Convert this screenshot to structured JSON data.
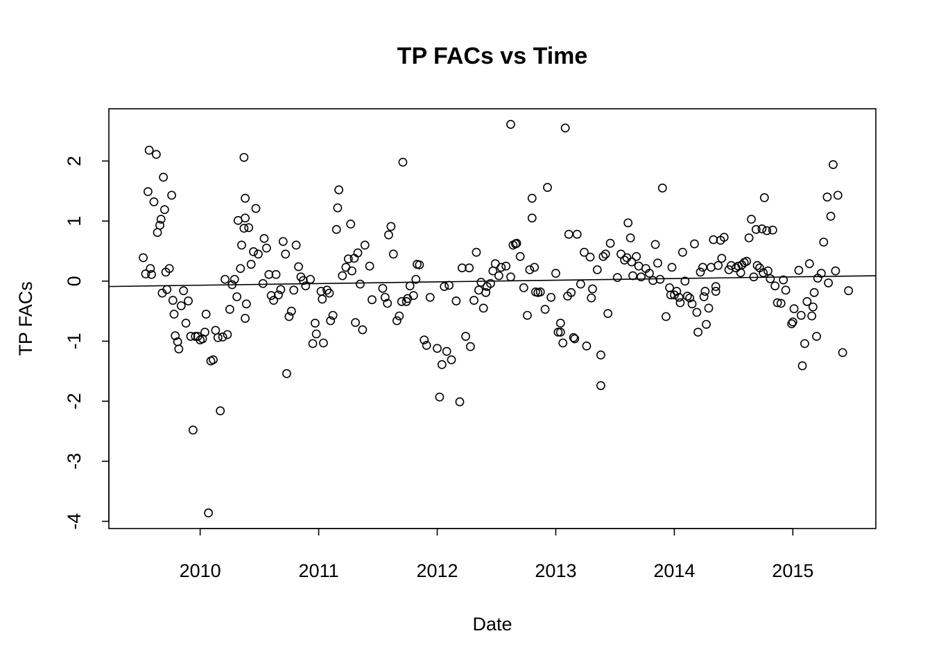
{
  "chart_data": {
    "type": "scatter",
    "title": "TP FACs vs Time",
    "xlabel": "Date",
    "ylabel": "TP FACs",
    "x_unit": "year",
    "xlim": [
      2009.23,
      2015.7
    ],
    "ylim": [
      -4.12,
      2.87
    ],
    "x_ticks": [
      2010,
      2011,
      2012,
      2013,
      2014,
      2015
    ],
    "y_ticks": [
      -4,
      -3,
      -2,
      -1,
      0,
      1,
      2
    ],
    "grid": false,
    "legend": "none",
    "trend_line": {
      "x": [
        2009.23,
        2015.7
      ],
      "y": [
        -0.09,
        0.09
      ]
    },
    "points": [
      [
        2009.52,
        0.39
      ],
      [
        2009.54,
        0.12
      ],
      [
        2009.56,
        1.49
      ],
      [
        2009.57,
        2.18
      ],
      [
        2009.58,
        0.21
      ],
      [
        2009.59,
        0.11
      ],
      [
        2009.61,
        1.32
      ],
      [
        2009.63,
        2.11
      ],
      [
        2009.64,
        0.81
      ],
      [
        2009.66,
        0.93
      ],
      [
        2009.67,
        1.03
      ],
      [
        2009.68,
        -0.2
      ],
      [
        2009.69,
        1.73
      ],
      [
        2009.7,
        1.19
      ],
      [
        2009.71,
        0.15
      ],
      [
        2009.72,
        -0.14
      ],
      [
        2009.74,
        0.21
      ],
      [
        2009.76,
        1.43
      ],
      [
        2009.77,
        -0.32
      ],
      [
        2009.78,
        -0.55
      ],
      [
        2009.79,
        -0.91
      ],
      [
        2009.81,
        -1.01
      ],
      [
        2009.82,
        -1.13
      ],
      [
        2009.84,
        -0.41
      ],
      [
        2009.86,
        -0.16
      ],
      [
        2009.88,
        -0.7
      ],
      [
        2009.9,
        -0.33
      ],
      [
        2009.92,
        -0.92
      ],
      [
        2009.94,
        -2.48
      ],
      [
        2009.96,
        -0.92
      ],
      [
        2009.98,
        -0.92
      ],
      [
        2010.0,
        -0.98
      ],
      [
        2010.02,
        -0.96
      ],
      [
        2010.04,
        -0.85
      ],
      [
        2010.05,
        -0.55
      ],
      [
        2010.07,
        -3.86
      ],
      [
        2010.09,
        -1.33
      ],
      [
        2010.11,
        -1.31
      ],
      [
        2010.13,
        -0.82
      ],
      [
        2010.15,
        -0.94
      ],
      [
        2010.17,
        -2.16
      ],
      [
        2010.19,
        -0.93
      ],
      [
        2010.21,
        0.03
      ],
      [
        2010.23,
        -0.89
      ],
      [
        2010.25,
        -0.47
      ],
      [
        2010.27,
        -0.06
      ],
      [
        2010.29,
        0.03
      ],
      [
        2010.31,
        -0.26
      ],
      [
        2010.32,
        1.01
      ],
      [
        2010.34,
        0.21
      ],
      [
        2010.35,
        0.6
      ],
      [
        2010.37,
        2.06
      ],
      [
        2010.37,
        0.88
      ],
      [
        2010.38,
        1.38
      ],
      [
        2010.38,
        1.05
      ],
      [
        2010.39,
        -0.38
      ],
      [
        2010.38,
        -0.62
      ],
      [
        2010.41,
        0.89
      ],
      [
        2010.43,
        0.28
      ],
      [
        2010.45,
        0.49
      ],
      [
        2010.47,
        1.21
      ],
      [
        2010.49,
        0.45
      ],
      [
        2010.53,
        -0.04
      ],
      [
        2010.54,
        0.71
      ],
      [
        2010.56,
        0.55
      ],
      [
        2010.58,
        0.11
      ],
      [
        2010.6,
        -0.24
      ],
      [
        2010.62,
        -0.32
      ],
      [
        2010.64,
        0.11
      ],
      [
        2010.66,
        -0.23
      ],
      [
        2010.68,
        -0.14
      ],
      [
        2010.7,
        0.66
      ],
      [
        2010.72,
        0.45
      ],
      [
        2010.73,
        -1.54
      ],
      [
        2010.75,
        -0.59
      ],
      [
        2010.77,
        -0.5
      ],
      [
        2010.79,
        -0.15
      ],
      [
        2010.81,
        0.6
      ],
      [
        2010.83,
        0.24
      ],
      [
        2010.85,
        0.07
      ],
      [
        2010.87,
        0.01
      ],
      [
        2010.89,
        -0.08
      ],
      [
        2010.93,
        0.03
      ],
      [
        2010.95,
        -1.04
      ],
      [
        2010.97,
        -0.7
      ],
      [
        2010.98,
        -0.88
      ],
      [
        2011.02,
        -0.17
      ],
      [
        2011.03,
        -0.3
      ],
      [
        2011.04,
        -1.03
      ],
      [
        2011.07,
        -0.15
      ],
      [
        2011.09,
        -0.2
      ],
      [
        2011.1,
        -0.66
      ],
      [
        2011.12,
        -0.57
      ],
      [
        2011.15,
        0.86
      ],
      [
        2011.16,
        1.22
      ],
      [
        2011.17,
        1.52
      ],
      [
        2011.2,
        0.09
      ],
      [
        2011.23,
        0.23
      ],
      [
        2011.25,
        0.37
      ],
      [
        2011.27,
        0.95
      ],
      [
        2011.28,
        0.17
      ],
      [
        2011.3,
        0.38
      ],
      [
        2011.31,
        -0.69
      ],
      [
        2011.33,
        0.47
      ],
      [
        2011.35,
        -0.05
      ],
      [
        2011.37,
        -0.81
      ],
      [
        2011.39,
        0.6
      ],
      [
        2011.43,
        0.25
      ],
      [
        2011.45,
        -0.31
      ],
      [
        2011.54,
        -0.12
      ],
      [
        2011.56,
        -0.27
      ],
      [
        2011.58,
        -0.37
      ],
      [
        2011.59,
        0.77
      ],
      [
        2011.61,
        0.91
      ],
      [
        2011.63,
        0.45
      ],
      [
        2011.66,
        -0.66
      ],
      [
        2011.68,
        -0.58
      ],
      [
        2011.7,
        -0.34
      ],
      [
        2011.71,
        1.98
      ],
      [
        2011.74,
        -0.34
      ],
      [
        2011.75,
        -0.29
      ],
      [
        2011.77,
        -0.08
      ],
      [
        2011.8,
        -0.24
      ],
      [
        2011.82,
        0.03
      ],
      [
        2011.83,
        0.28
      ],
      [
        2011.85,
        0.27
      ],
      [
        2011.89,
        -0.98
      ],
      [
        2011.91,
        -1.07
      ],
      [
        2011.94,
        -0.27
      ],
      [
        2012.0,
        -1.12
      ],
      [
        2012.02,
        -1.93
      ],
      [
        2012.04,
        -1.39
      ],
      [
        2012.06,
        -0.09
      ],
      [
        2012.08,
        -1.17
      ],
      [
        2012.1,
        -0.07
      ],
      [
        2012.12,
        -1.31
      ],
      [
        2012.16,
        -0.33
      ],
      [
        2012.19,
        -2.01
      ],
      [
        2012.21,
        0.22
      ],
      [
        2012.24,
        -0.92
      ],
      [
        2012.27,
        0.22
      ],
      [
        2012.28,
        -1.09
      ],
      [
        2012.31,
        -0.32
      ],
      [
        2012.33,
        0.48
      ],
      [
        2012.35,
        -0.15
      ],
      [
        2012.37,
        -0.02
      ],
      [
        2012.39,
        -0.45
      ],
      [
        2012.41,
        -0.19
      ],
      [
        2012.42,
        -0.09
      ],
      [
        2012.45,
        -0.04
      ],
      [
        2012.47,
        0.17
      ],
      [
        2012.49,
        0.29
      ],
      [
        2012.52,
        0.09
      ],
      [
        2012.54,
        0.23
      ],
      [
        2012.58,
        0.25
      ],
      [
        2012.62,
        2.61
      ],
      [
        2012.62,
        0.07
      ],
      [
        2012.64,
        0.6
      ],
      [
        2012.66,
        0.62
      ],
      [
        2012.67,
        0.63
      ],
      [
        2012.7,
        0.41
      ],
      [
        2012.73,
        -0.11
      ],
      [
        2012.76,
        -0.57
      ],
      [
        2012.78,
        0.19
      ],
      [
        2012.8,
        1.05
      ],
      [
        2012.8,
        1.38
      ],
      [
        2012.82,
        0.23
      ],
      [
        2012.83,
        -0.18
      ],
      [
        2012.85,
        -0.19
      ],
      [
        2012.87,
        -0.18
      ],
      [
        2012.91,
        -0.47
      ],
      [
        2012.93,
        1.56
      ],
      [
        2012.96,
        -0.27
      ],
      [
        2013.0,
        0.13
      ],
      [
        2013.02,
        -0.85
      ],
      [
        2013.04,
        -0.7
      ],
      [
        2013.04,
        -0.85
      ],
      [
        2013.06,
        -1.03
      ],
      [
        2013.08,
        2.55
      ],
      [
        2013.1,
        -0.25
      ],
      [
        2013.11,
        0.78
      ],
      [
        2013.13,
        -0.19
      ],
      [
        2013.15,
        -0.94
      ],
      [
        2013.16,
        -0.96
      ],
      [
        2013.18,
        0.78
      ],
      [
        2013.21,
        -0.05
      ],
      [
        2013.24,
        0.48
      ],
      [
        2013.26,
        -1.08
      ],
      [
        2013.29,
        0.4
      ],
      [
        2013.3,
        -0.28
      ],
      [
        2013.31,
        -0.13
      ],
      [
        2013.35,
        0.19
      ],
      [
        2013.38,
        -1.23
      ],
      [
        2013.38,
        -1.74
      ],
      [
        2013.4,
        0.41
      ],
      [
        2013.42,
        0.45
      ],
      [
        2013.44,
        -0.54
      ],
      [
        2013.46,
        0.63
      ],
      [
        2013.52,
        0.06
      ],
      [
        2013.55,
        0.45
      ],
      [
        2013.58,
        0.35
      ],
      [
        2013.6,
        0.39
      ],
      [
        2013.61,
        0.97
      ],
      [
        2013.63,
        0.72
      ],
      [
        2013.64,
        0.32
      ],
      [
        2013.65,
        0.09
      ],
      [
        2013.68,
        0.41
      ],
      [
        2013.7,
        0.25
      ],
      [
        2013.72,
        0.07
      ],
      [
        2013.76,
        0.21
      ],
      [
        2013.79,
        0.13
      ],
      [
        2013.82,
        0.01
      ],
      [
        2013.84,
        0.61
      ],
      [
        2013.86,
        0.3
      ],
      [
        2013.88,
        0.03
      ],
      [
        2013.9,
        1.55
      ],
      [
        2013.93,
        -0.59
      ],
      [
        2013.96,
        -0.11
      ],
      [
        2013.97,
        -0.23
      ],
      [
        2013.98,
        0.23
      ],
      [
        2014.0,
        -0.23
      ],
      [
        2014.02,
        -0.17
      ],
      [
        2014.04,
        -0.27
      ],
      [
        2014.05,
        -0.36
      ],
      [
        2014.07,
        0.48
      ],
      [
        2014.09,
        0.0
      ],
      [
        2014.11,
        -0.25
      ],
      [
        2014.13,
        -0.28
      ],
      [
        2014.15,
        -0.38
      ],
      [
        2014.17,
        0.62
      ],
      [
        2014.19,
        -0.52
      ],
      [
        2014.2,
        -0.85
      ],
      [
        2014.22,
        0.15
      ],
      [
        2014.24,
        0.23
      ],
      [
        2014.25,
        -0.26
      ],
      [
        2014.26,
        -0.17
      ],
      [
        2014.27,
        -0.72
      ],
      [
        2014.29,
        -0.45
      ],
      [
        2014.31,
        0.23
      ],
      [
        2014.33,
        0.69
      ],
      [
        2014.35,
        -0.17
      ],
      [
        2014.35,
        -0.09
      ],
      [
        2014.37,
        0.26
      ],
      [
        2014.39,
        0.68
      ],
      [
        2014.4,
        0.38
      ],
      [
        2014.42,
        0.73
      ],
      [
        2014.46,
        0.19
      ],
      [
        2014.48,
        0.26
      ],
      [
        2014.52,
        0.22
      ],
      [
        2014.54,
        0.25
      ],
      [
        2014.56,
        0.14
      ],
      [
        2014.57,
        0.27
      ],
      [
        2014.59,
        0.31
      ],
      [
        2014.61,
        0.33
      ],
      [
        2014.63,
        0.72
      ],
      [
        2014.65,
        1.03
      ],
      [
        2014.67,
        0.07
      ],
      [
        2014.69,
        0.86
      ],
      [
        2014.7,
        0.26
      ],
      [
        2014.72,
        0.22
      ],
      [
        2014.74,
        0.87
      ],
      [
        2014.75,
        0.14
      ],
      [
        2014.76,
        1.39
      ],
      [
        2014.78,
        0.84
      ],
      [
        2014.79,
        0.17
      ],
      [
        2014.81,
        0.04
      ],
      [
        2014.83,
        0.85
      ],
      [
        2014.85,
        -0.08
      ],
      [
        2014.87,
        -0.36
      ],
      [
        2014.9,
        -0.37
      ],
      [
        2014.92,
        0.02
      ],
      [
        2014.94,
        -0.15
      ],
      [
        2014.99,
        -0.71
      ],
      [
        2015.0,
        -0.68
      ],
      [
        2015.01,
        -0.46
      ],
      [
        2015.05,
        0.18
      ],
      [
        2015.07,
        -0.57
      ],
      [
        2015.08,
        -1.41
      ],
      [
        2015.1,
        -1.04
      ],
      [
        2015.12,
        -0.34
      ],
      [
        2015.14,
        0.29
      ],
      [
        2015.16,
        -0.58
      ],
      [
        2015.17,
        -0.43
      ],
      [
        2015.18,
        -0.19
      ],
      [
        2015.2,
        -0.92
      ],
      [
        2015.21,
        0.05
      ],
      [
        2015.24,
        0.13
      ],
      [
        2015.26,
        0.65
      ],
      [
        2015.29,
        1.4
      ],
      [
        2015.3,
        -0.03
      ],
      [
        2015.32,
        1.08
      ],
      [
        2015.34,
        1.94
      ],
      [
        2015.36,
        0.17
      ],
      [
        2015.38,
        1.43
      ],
      [
        2015.42,
        -1.19
      ],
      [
        2015.47,
        -0.16
      ]
    ]
  }
}
